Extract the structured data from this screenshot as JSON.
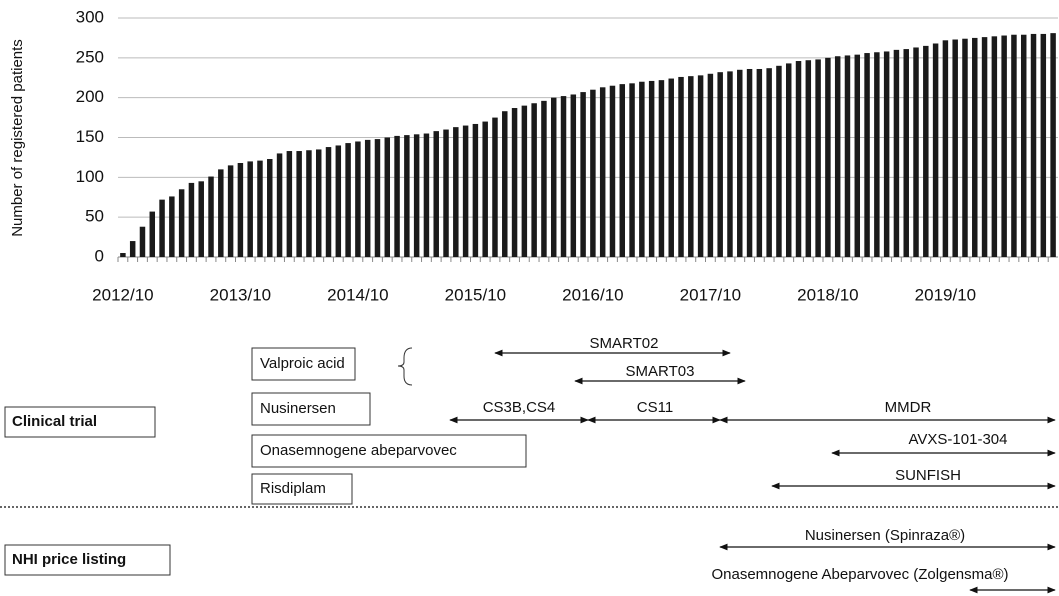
{
  "chart_data": {
    "type": "bar",
    "y_label": "Number of registered patients",
    "categories": [
      "2012/10",
      null,
      null,
      null,
      null,
      null,
      null,
      null,
      null,
      null,
      null,
      null,
      "2013/10",
      null,
      null,
      null,
      null,
      null,
      null,
      null,
      null,
      null,
      null,
      null,
      "2014/10",
      null,
      null,
      null,
      null,
      null,
      null,
      null,
      null,
      null,
      null,
      null,
      "2015/10",
      null,
      null,
      null,
      null,
      null,
      null,
      null,
      null,
      null,
      null,
      null,
      "2016/10",
      null,
      null,
      null,
      null,
      null,
      null,
      null,
      null,
      null,
      null,
      null,
      "2017/10",
      null,
      null,
      null,
      null,
      null,
      null,
      null,
      null,
      null,
      null,
      null,
      "2018/10",
      null,
      null,
      null,
      null,
      null,
      null,
      null,
      null,
      null,
      null,
      null,
      "2019/10",
      null,
      null,
      null,
      null,
      null,
      null,
      null,
      null,
      null,
      null,
      null
    ],
    "values": [
      5,
      20,
      38,
      57,
      72,
      76,
      85,
      93,
      95,
      101,
      110,
      115,
      118,
      120,
      121,
      123,
      130,
      133,
      133,
      134,
      135,
      138,
      140,
      143,
      145,
      147,
      148,
      150,
      152,
      153,
      154,
      155,
      158,
      160,
      163,
      165,
      167,
      170,
      175,
      183,
      187,
      190,
      193,
      196,
      200,
      202,
      204,
      207,
      210,
      213,
      215,
      217,
      218,
      220,
      221,
      222,
      224,
      226,
      227,
      228,
      230,
      232,
      233,
      235,
      236,
      236,
      237,
      240,
      243,
      246,
      247,
      248,
      250,
      252,
      253,
      254,
      256,
      257,
      258,
      260,
      261,
      263,
      265,
      268,
      272,
      273,
      274,
      275,
      276,
      277,
      278,
      279,
      279,
      280,
      280,
      281
    ],
    "color": "#1a1a1a",
    "ylim": [
      0,
      300
    ],
    "yticks": [
      0,
      50,
      100,
      150,
      200,
      250,
      300
    ],
    "grid": true
  },
  "timeline": {
    "sections": [
      "Clinical trial",
      "NHI price listing"
    ],
    "drugs": [
      "Valproic acid",
      "Nusinersen",
      "Onasemnogene abeparvovec",
      "Risdiplam"
    ],
    "trials": [
      "SMART02",
      "SMART03",
      "CS3B,CS4",
      "CS11",
      "MMDR",
      "AVXS-101-304",
      "SUNFISH"
    ],
    "listings": [
      "Nusinersen (Spinraza®)",
      "Onasemnogene Abeparvovec (Zolgensma®)"
    ]
  }
}
